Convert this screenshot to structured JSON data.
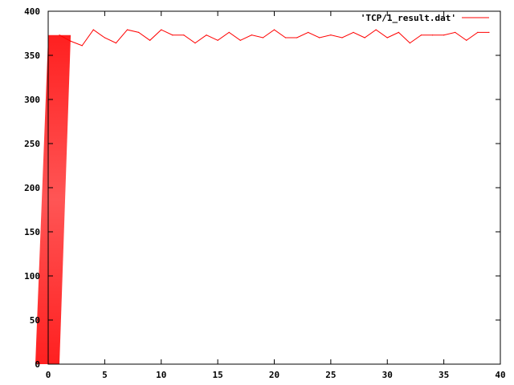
{
  "chart_data": {
    "type": "line",
    "title": "",
    "xlabel": "",
    "ylabel": "",
    "xlim": [
      0,
      40
    ],
    "ylim": [
      0,
      400
    ],
    "x_ticks": [
      0,
      5,
      10,
      15,
      20,
      25,
      30,
      35,
      40
    ],
    "y_ticks": [
      0,
      50,
      100,
      150,
      200,
      250,
      300,
      350,
      400
    ],
    "grid": false,
    "legend_position": "top-right",
    "series": [
      {
        "name": "'TCP/1_result.dat'",
        "color": "#ff0000",
        "x": [
          0,
          1,
          2,
          3,
          4,
          5,
          6,
          7,
          8,
          9,
          10,
          11,
          12,
          13,
          14,
          15,
          16,
          17,
          18,
          19,
          20,
          21,
          22,
          23,
          24,
          25,
          26,
          27,
          28,
          29,
          30,
          31,
          32,
          33,
          34,
          35,
          36,
          37,
          38,
          39
        ],
        "values": [
          0,
          373,
          366,
          361,
          379,
          370,
          364,
          379,
          376,
          367,
          379,
          373,
          373,
          364,
          373,
          367,
          376,
          367,
          373,
          370,
          379,
          370,
          370,
          376,
          370,
          373,
          370,
          376,
          370,
          379,
          370,
          376,
          364,
          373,
          373,
          373,
          376,
          367,
          376,
          376
        ]
      }
    ]
  }
}
